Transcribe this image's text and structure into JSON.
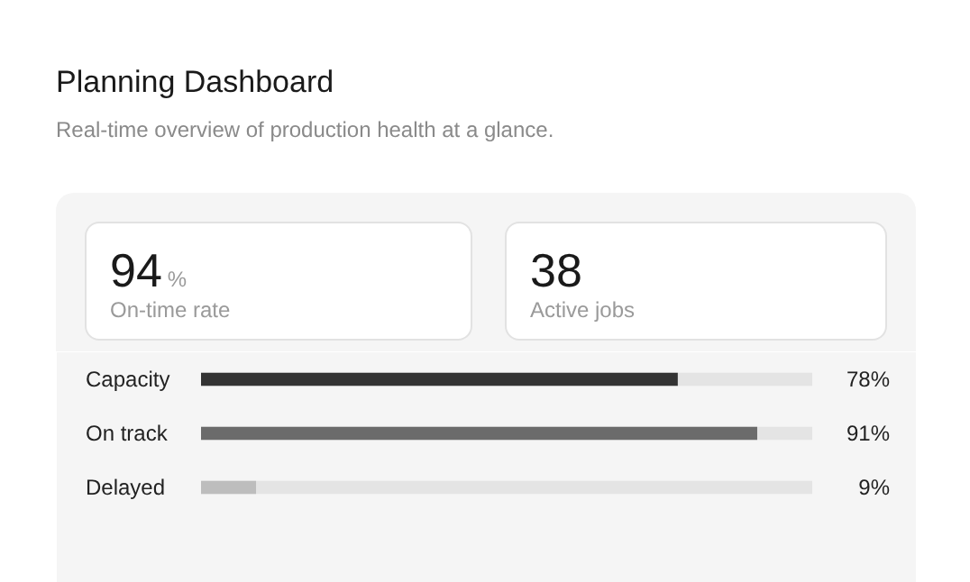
{
  "chart_data": [
    {
      "type": "other",
      "title": "Planning Dashboard",
      "subtitle": "Real-time overview of production health at a glance.",
      "annotations": [
        "94",
        "%",
        "On-time rate",
        "38",
        "Active jobs"
      ]
    },
    {
      "type": "bar",
      "orientation": "horizontal",
      "categories": [
        "Capacity",
        "On track",
        "Delayed"
      ],
      "values": [
        78,
        91,
        9
      ],
      "colors": [
        "#333333",
        "#6b6b6b",
        "#bdbdbd"
      ],
      "value_labels": [
        "78%",
        "91%",
        "9%"
      ],
      "xlim": [
        0,
        100
      ]
    }
  ]
}
